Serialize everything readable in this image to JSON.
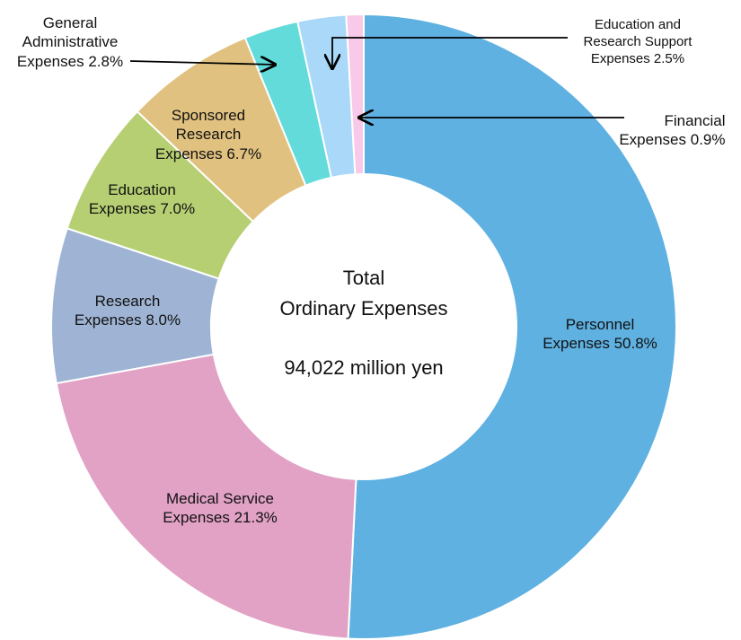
{
  "chart_data": {
    "type": "donut",
    "categories": [
      "Personnel Expenses",
      "Medical Service Expenses",
      "Research Expenses",
      "Education Expenses",
      "Sponsored Research Expenses",
      "General Administrative Expenses",
      "Education and Research Support Expenses",
      "Financial Expenses"
    ],
    "values": [
      50.8,
      21.3,
      8.0,
      7.0,
      6.7,
      2.8,
      2.5,
      0.9
    ],
    "value_labels": [
      "50.8%",
      "21.3%",
      "8.0%",
      "7.0%",
      "6.7%",
      "2.8%",
      "2.5%",
      "0.9%"
    ],
    "colors": [
      "#5fb1e1",
      "#e2a2c6",
      "#9fb4d4",
      "#b6cf73",
      "#e0c17f",
      "#63dbdb",
      "#a9d8f8",
      "#f8c9e8"
    ],
    "center_label": [
      "Total",
      "Ordinary Expenses"
    ],
    "total_label": "94,022 million yen"
  }
}
